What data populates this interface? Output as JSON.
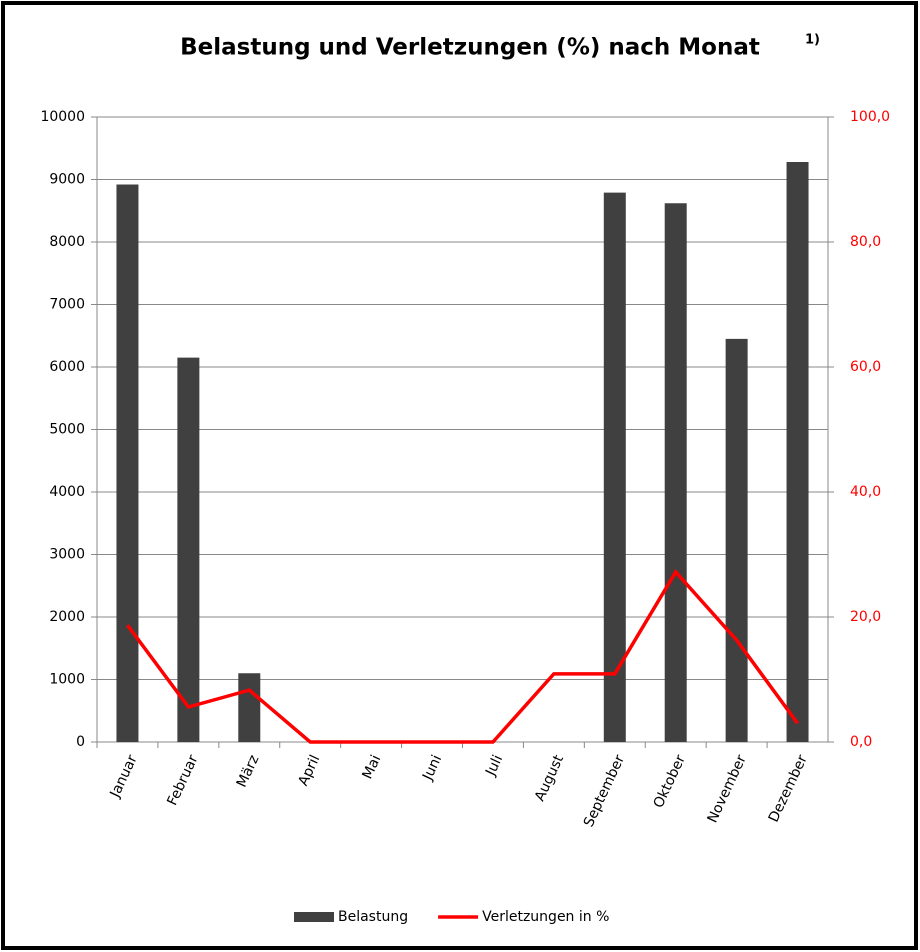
{
  "chart_data": {
    "type": "bar_line",
    "title": "Belastung und Verletzungen (%) nach Monat",
    "title_note": "1)",
    "categories": [
      "Januar",
      "Februar",
      "März",
      "April",
      "Mai",
      "Juni",
      "Juli",
      "August",
      "September",
      "Oktober",
      "November",
      "Dezember"
    ],
    "series": [
      {
        "name": "Belastung",
        "color": "#404040",
        "type": "bar",
        "values": [
          8920,
          6150,
          1100,
          0,
          0,
          0,
          0,
          0,
          8790,
          8620,
          6450,
          9280
        ]
      },
      {
        "name": "Verletzungen in %",
        "color": "#ff0000",
        "type": "line",
        "axis": "y2",
        "values": [
          18.7,
          5.6,
          8.3,
          0,
          0,
          0,
          0,
          10.9,
          10.9,
          27.2,
          16.3,
          3.0
        ]
      }
    ],
    "ylim": [
      0,
      10000
    ],
    "yticks": [
      0,
      1000,
      2000,
      3000,
      4000,
      5000,
      6000,
      7000,
      8000,
      9000,
      10000
    ],
    "y2lim": [
      0,
      100
    ],
    "y2ticks": [
      {
        "value": 0,
        "label": "0,0"
      },
      {
        "value": 20,
        "label": "20,0"
      },
      {
        "value": 40,
        "label": "40,0"
      },
      {
        "value": 60,
        "label": "60,0"
      },
      {
        "value": 80,
        "label": "80,0"
      },
      {
        "value": 100,
        "label": "100,0"
      }
    ],
    "grid": true,
    "legend": "bottom"
  }
}
